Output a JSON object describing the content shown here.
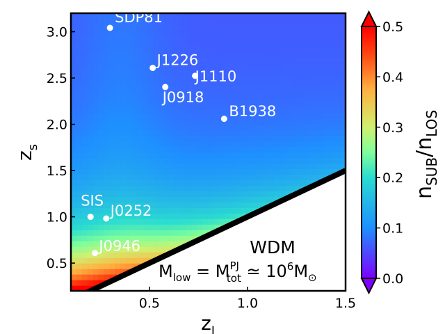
{
  "chart_data": {
    "type": "heatmap",
    "title": "",
    "xlabel": {
      "base": "z",
      "sub": "l"
    },
    "ylabel": {
      "base": "z",
      "sub": "s"
    },
    "xlim": [
      0.1,
      1.5
    ],
    "ylim": [
      0.2,
      3.2
    ],
    "xticks": [
      {
        "value": 0.5,
        "label": "0.5"
      },
      {
        "value": 1.0,
        "label": "1.0"
      },
      {
        "value": 1.5,
        "label": "1.5"
      }
    ],
    "yticks": [
      {
        "value": 0.5,
        "label": "0.5"
      },
      {
        "value": 1.0,
        "label": "1.0"
      },
      {
        "value": 1.5,
        "label": "1.5"
      },
      {
        "value": 2.0,
        "label": "2.0"
      },
      {
        "value": 2.5,
        "label": "2.5"
      },
      {
        "value": 3.0,
        "label": "3.0"
      }
    ],
    "boundary_line": {
      "x": [
        0.1,
        1.5
      ],
      "y": [
        0.1,
        1.5
      ],
      "note": "z_s = z_l; region below is white"
    },
    "heat_field": {
      "description": "ratio n_SUB/n_LOS, highest near small z_l and z_s, decreasing toward large z_s",
      "cell_size": {
        "x": 0.028,
        "y": 0.06
      }
    },
    "points": [
      {
        "name": "SDP81",
        "x": 0.299,
        "y": 3.042
      },
      {
        "name": "J1226",
        "x": 0.517,
        "y": 2.609
      },
      {
        "name": "J1110",
        "x": 0.733,
        "y": 2.524
      },
      {
        "name": "J0918",
        "x": 0.581,
        "y": 2.403
      },
      {
        "name": "B1938",
        "x": 0.881,
        "y": 2.059
      },
      {
        "name": "SIS",
        "x": 0.2,
        "y": 1.0
      },
      {
        "name": "J0252",
        "x": 0.28,
        "y": 0.982
      },
      {
        "name": "J0946",
        "x": 0.222,
        "y": 0.609
      }
    ],
    "annotations": {
      "line1": "WDM",
      "line2": {
        "M": "M",
        "low": "low",
        "eq": " = ",
        "pj": "PJ",
        "tot": "tot",
        "approx": " ≃ 10",
        "exp": "6",
        "sun": "⊙"
      }
    },
    "colorbar": {
      "label": {
        "base": "n",
        "sub1": "SUB",
        "slash": "/n",
        "sub2": "LOS"
      },
      "range": [
        0.0,
        0.5
      ],
      "ticks": [
        {
          "value": 0.0,
          "label": "0.0"
        },
        {
          "value": 0.1,
          "label": "0.1"
        },
        {
          "value": 0.2,
          "label": "0.2"
        },
        {
          "value": 0.3,
          "label": "0.3"
        },
        {
          "value": 0.4,
          "label": "0.4"
        },
        {
          "value": 0.5,
          "label": "0.5"
        }
      ],
      "extend": "both",
      "colormap": "rainbow",
      "colormap_stops": [
        {
          "v": 0.0,
          "c": "#7f00ff"
        },
        {
          "v": 0.2,
          "c": "#1e90ff"
        },
        {
          "v": 0.4,
          "c": "#2bdcd0"
        },
        {
          "v": 0.5,
          "c": "#80ff9a"
        },
        {
          "v": 0.6,
          "c": "#d0f070"
        },
        {
          "v": 0.75,
          "c": "#ffb040"
        },
        {
          "v": 0.9,
          "c": "#ff4010"
        },
        {
          "v": 1.0,
          "c": "#ff0000"
        }
      ]
    }
  }
}
